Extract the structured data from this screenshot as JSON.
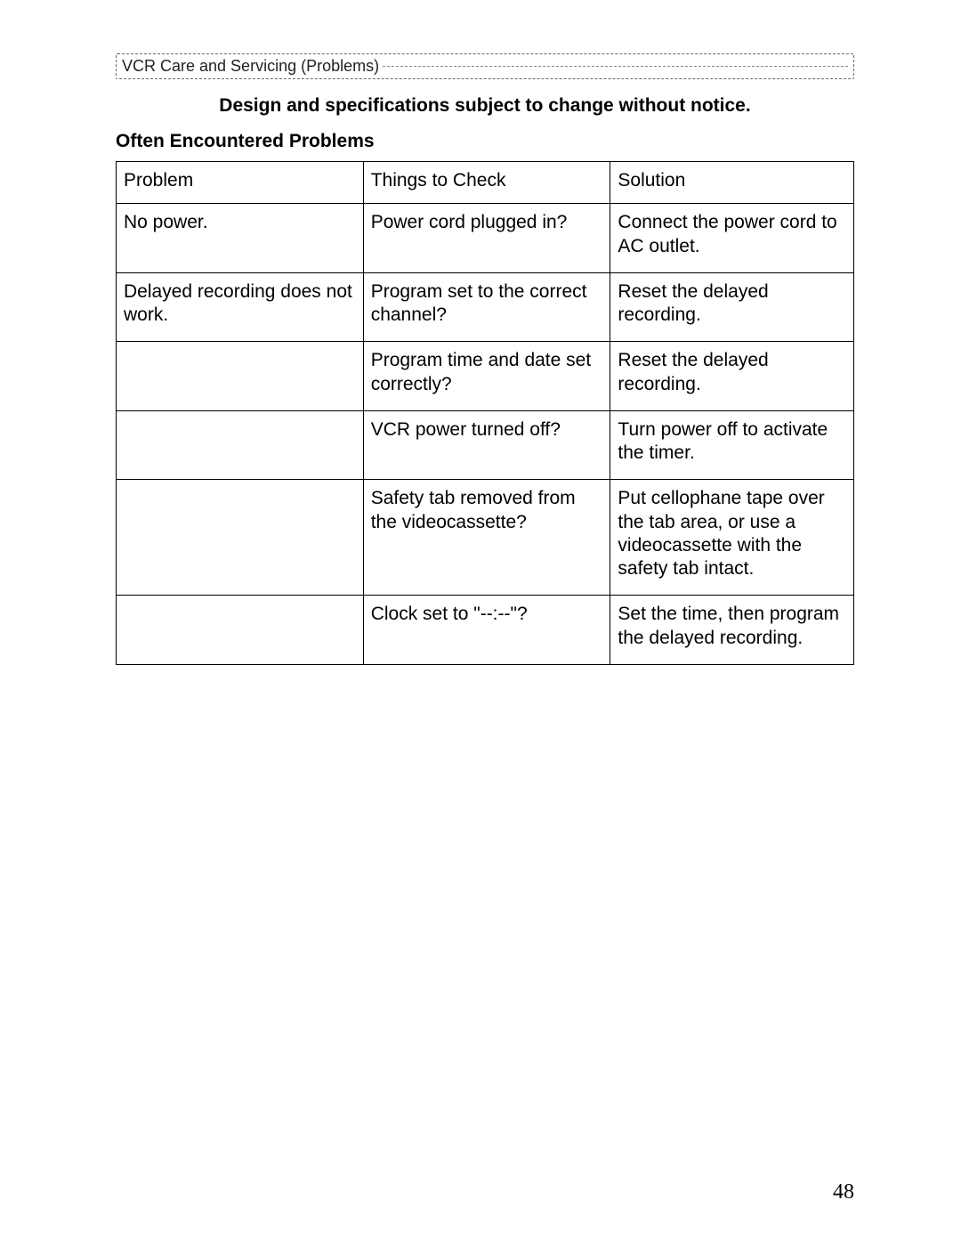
{
  "header": {
    "breadcrumb": "VCR Care and Servicing (Problems)"
  },
  "notice": "Design and specifications subject to change without notice.",
  "section_title": "Often Encountered Problems",
  "table": {
    "columns": [
      "Problem",
      "Things to Check",
      "Solution"
    ],
    "col_widths_pct": [
      33.5,
      33.5,
      33
    ],
    "border_color": "#000000",
    "font_size_pt": 16,
    "rows": [
      [
        "No power.",
        "Power cord plugged in?",
        "Connect the power cord to AC outlet."
      ],
      [
        "Delayed recording does not work.",
        "Program set to the correct channel?",
        "Reset the delayed recording."
      ],
      [
        "",
        "Program time and date set correctly?",
        "Reset the delayed recording."
      ],
      [
        "",
        "VCR power turned off?",
        "Turn power off to activate the timer."
      ],
      [
        "",
        "Safety tab removed from the videocassette?",
        "Put cellophane tape over the tab area, or use a videocassette with the safety tab intact."
      ],
      [
        "",
        "Clock set to  \"--:--\"?",
        "Set the time, then program the delayed recording."
      ]
    ]
  },
  "page_number": "48",
  "style": {
    "page_bg": "#ffffff",
    "text_color": "#000000",
    "dashed_border_color": "#666666"
  }
}
